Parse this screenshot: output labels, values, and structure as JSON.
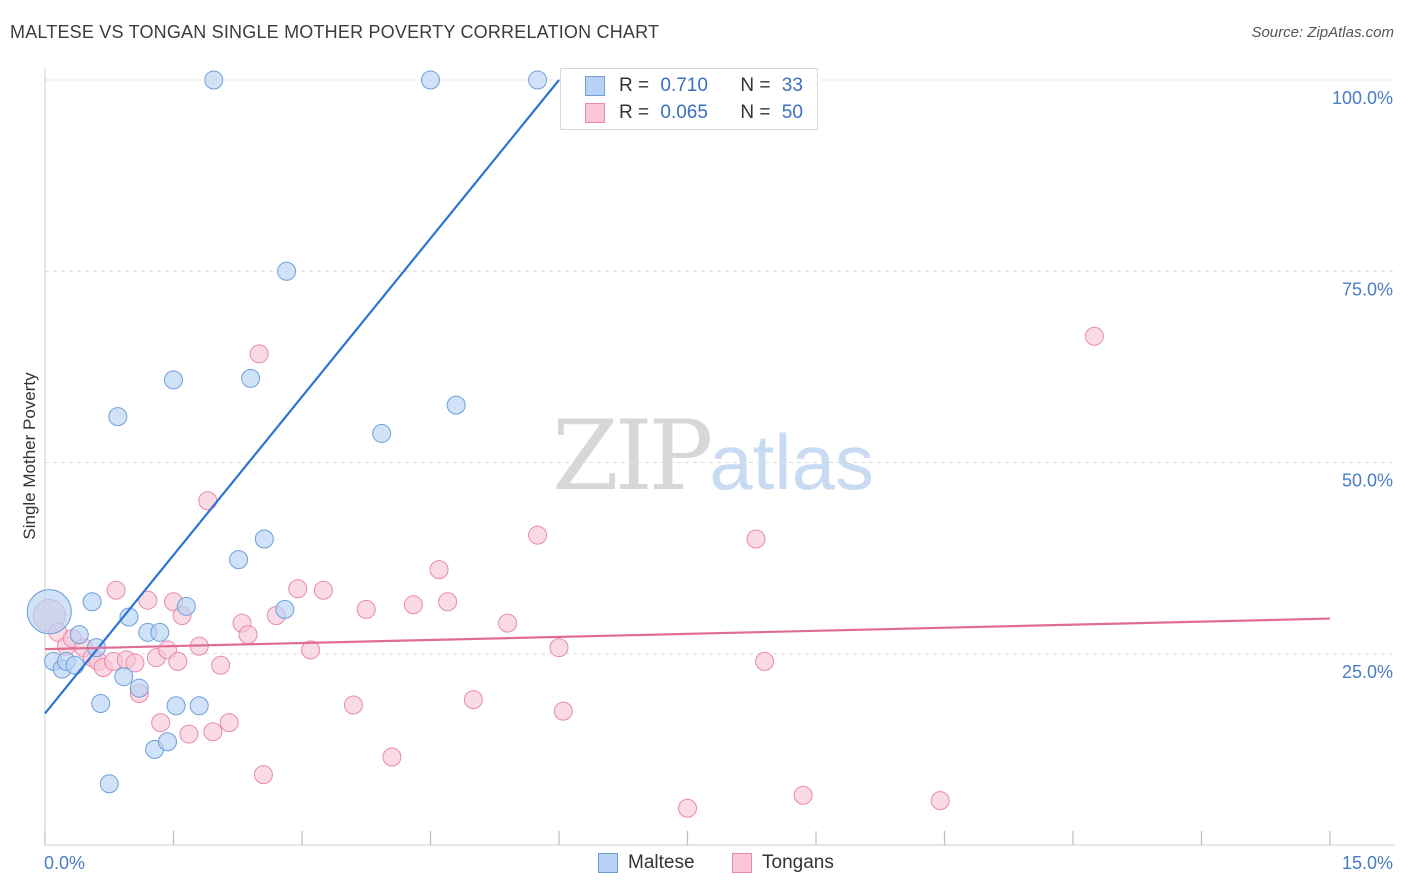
{
  "title": "MALTESE VS TONGAN SINGLE MOTHER POVERTY CORRELATION CHART",
  "source": "Source: ZipAtlas.com",
  "watermark": {
    "zip": "ZIP",
    "atlas": "atlas"
  },
  "colors": {
    "maltese_fill": "#b7d2f4",
    "maltese_stroke": "#6f9fd8",
    "maltese_line": "#2e74d2",
    "tongans_fill": "#f8c6d6",
    "tongans_stroke": "#e98aab",
    "tongans_line": "#e06c93",
    "tick_text": "#4a7cc4",
    "grid": "#dcdcdc"
  },
  "stats": {
    "maltese": {
      "r_label": "R = ",
      "r_value": "0.710",
      "n_label": "N = ",
      "n_value": "33"
    },
    "tongans": {
      "r_label": "R = ",
      "r_value": "0.065",
      "n_label": "N = ",
      "n_value": "50"
    }
  },
  "legend": {
    "maltese": "Maltese",
    "tongans": "Tongans"
  },
  "chart_data": {
    "type": "scatter",
    "title": "MALTESE VS TONGAN SINGLE MOTHER POVERTY CORRELATION CHART",
    "xlabel": "",
    "ylabel": "Single Mother Poverty",
    "xlim": [
      0,
      15
    ],
    "ylim": [
      0,
      100
    ],
    "x_tick_labels": [
      "0.0%",
      "15.0%"
    ],
    "y_ticks": [
      25,
      50,
      75,
      100
    ],
    "y_tick_labels": [
      "25.0%",
      "50.0%",
      "75.0%",
      "100.0%"
    ],
    "grid": "horizontal dashed",
    "legend_position": "bottom",
    "series": [
      {
        "name": "Maltese",
        "r": 0.71,
        "n": 33,
        "trend": {
          "x": [
            0,
            6.0
          ],
          "y": [
            17.2,
            100.0
          ]
        },
        "points": [
          [
            0.05,
            30.5,
            22
          ],
          [
            0.1,
            24,
            9
          ],
          [
            0.2,
            23,
            9
          ],
          [
            0.25,
            24,
            9
          ],
          [
            0.35,
            23.5,
            9
          ],
          [
            0.4,
            27.5,
            9
          ],
          [
            0.55,
            31.8,
            9
          ],
          [
            0.6,
            25.8,
            9
          ],
          [
            0.65,
            18.5,
            9
          ],
          [
            0.75,
            8,
            9
          ],
          [
            0.85,
            56,
            9
          ],
          [
            0.92,
            22,
            9
          ],
          [
            0.98,
            29.8,
            9
          ],
          [
            1.1,
            20.5,
            9
          ],
          [
            1.2,
            27.8,
            9
          ],
          [
            1.28,
            12.5,
            9
          ],
          [
            1.34,
            27.8,
            9
          ],
          [
            1.43,
            13.5,
            9
          ],
          [
            1.5,
            60.8,
            9
          ],
          [
            1.53,
            18.2,
            9
          ],
          [
            1.65,
            31.2,
            9
          ],
          [
            1.8,
            18.2,
            9
          ],
          [
            1.97,
            100,
            9
          ],
          [
            2.26,
            37.3,
            9
          ],
          [
            2.4,
            61,
            9
          ],
          [
            2.56,
            40,
            9
          ],
          [
            2.8,
            30.8,
            9
          ],
          [
            2.82,
            75,
            9
          ],
          [
            3.93,
            53.8,
            9
          ],
          [
            4.5,
            100,
            9
          ],
          [
            4.8,
            57.5,
            9
          ],
          [
            5.75,
            100,
            9
          ]
        ]
      },
      {
        "name": "Tongans",
        "r": 0.065,
        "n": 50,
        "trend": {
          "x": [
            0,
            15
          ],
          "y": [
            25.6,
            29.6
          ]
        },
        "points": [
          [
            0.05,
            30,
            16
          ],
          [
            0.15,
            27.8,
            9
          ],
          [
            0.25,
            26,
            9
          ],
          [
            0.32,
            27,
            9
          ],
          [
            0.45,
            25.8,
            9
          ],
          [
            0.55,
            24.5,
            9
          ],
          [
            0.62,
            24,
            9
          ],
          [
            0.68,
            23.2,
            9
          ],
          [
            0.8,
            24,
            9
          ],
          [
            0.83,
            33.3,
            9
          ],
          [
            0.95,
            24.2,
            9
          ],
          [
            1.05,
            23.8,
            9
          ],
          [
            1.1,
            19.8,
            9
          ],
          [
            1.2,
            32,
            9
          ],
          [
            1.3,
            24.5,
            9
          ],
          [
            1.35,
            16,
            9
          ],
          [
            1.43,
            25.5,
            9
          ],
          [
            1.5,
            31.8,
            9
          ],
          [
            1.55,
            24,
            9
          ],
          [
            1.6,
            30,
            9
          ],
          [
            1.68,
            14.5,
            9
          ],
          [
            1.8,
            26,
            9
          ],
          [
            1.9,
            45,
            9
          ],
          [
            1.96,
            14.8,
            9
          ],
          [
            2.05,
            23.5,
            9
          ],
          [
            2.15,
            16,
            9
          ],
          [
            2.3,
            29,
            9
          ],
          [
            2.37,
            27.5,
            9
          ],
          [
            2.5,
            64.2,
            9
          ],
          [
            2.55,
            9.2,
            9
          ],
          [
            2.7,
            30,
            9
          ],
          [
            2.95,
            33.5,
            9
          ],
          [
            3.1,
            25.5,
            9
          ],
          [
            3.25,
            33.3,
            9
          ],
          [
            3.6,
            18.3,
            9
          ],
          [
            3.75,
            30.8,
            9
          ],
          [
            4.05,
            11.5,
            9
          ],
          [
            4.3,
            31.4,
            9
          ],
          [
            4.6,
            36,
            9
          ],
          [
            4.7,
            31.8,
            9
          ],
          [
            5.0,
            19,
            9
          ],
          [
            5.4,
            29,
            9
          ],
          [
            5.75,
            40.5,
            9
          ],
          [
            6.0,
            25.8,
            9
          ],
          [
            6.05,
            17.5,
            9
          ],
          [
            7.5,
            4.8,
            9
          ],
          [
            8.3,
            40,
            9
          ],
          [
            8.4,
            24,
            9
          ],
          [
            8.85,
            6.5,
            9
          ],
          [
            10.45,
            5.8,
            9
          ],
          [
            12.25,
            66.5,
            9
          ]
        ]
      }
    ]
  }
}
